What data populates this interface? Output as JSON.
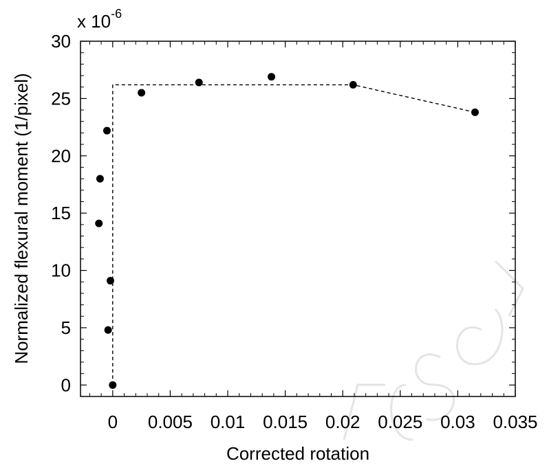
{
  "chart_data": {
    "type": "scatter",
    "title": "",
    "xlabel": "Corrected rotation",
    "ylabel": "Normalized flexural moment (1/pixel)",
    "y_multiplier": {
      "base": "x 10",
      "exponent": "-6"
    },
    "xlim": [
      -0.0028,
      0.035
    ],
    "ylim": [
      -1,
      30
    ],
    "x_ticks": [
      0,
      0.005,
      0.01,
      0.015,
      0.02,
      0.025,
      0.03,
      0.035
    ],
    "x_tick_labels": [
      "0",
      "0.005",
      "0.01",
      "0.015",
      "0.02",
      "0.025",
      "0.03",
      "0.035"
    ],
    "y_ticks": [
      0,
      5,
      10,
      15,
      20,
      25,
      30
    ],
    "y_tick_labels": [
      "0",
      "5",
      "10",
      "15",
      "20",
      "25",
      "30"
    ],
    "grid": false,
    "legend": "none",
    "points": [
      {
        "x": 0.0,
        "y": 0.0
      },
      {
        "x": -0.0004,
        "y": 4.8
      },
      {
        "x": -0.0002,
        "y": 9.1
      },
      {
        "x": -0.0012,
        "y": 14.1
      },
      {
        "x": -0.0011,
        "y": 18.0
      },
      {
        "x": -0.0005,
        "y": 22.2
      },
      {
        "x": 0.0025,
        "y": 25.5
      },
      {
        "x": 0.0075,
        "y": 26.4
      },
      {
        "x": 0.0138,
        "y": 26.9
      },
      {
        "x": 0.0209,
        "y": 26.2
      },
      {
        "x": 0.0315,
        "y": 23.8
      }
    ],
    "fit_line": {
      "style": "dashed",
      "points": [
        {
          "x": 0.0,
          "y": 0.0
        },
        {
          "x": 0.0,
          "y": 26.2
        },
        {
          "x": 0.0209,
          "y": 26.2
        },
        {
          "x": 0.0315,
          "y": 23.8
        }
      ]
    },
    "marker_color": "#000000",
    "line_color": "#000000"
  }
}
